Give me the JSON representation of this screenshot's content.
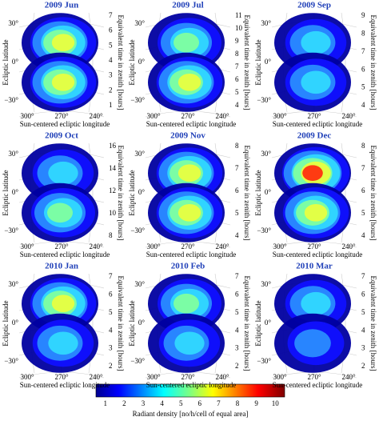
{
  "shared": {
    "y_label": "Ecliptic latitude",
    "y2_label": "Equivalent time in zenith [hours]",
    "x_label": "Sun-centered ecliptic longitude",
    "left_ticks": [
      "30°",
      "0°",
      "−30°"
    ],
    "bottom_ticks": [
      "300°",
      "270°",
      "240°"
    ]
  },
  "panels": [
    {
      "title": "2009 Jun",
      "right_ticks": [
        "7",
        "6",
        "5",
        "4",
        "3",
        "2",
        "1"
      ]
    },
    {
      "title": "2009 Jul",
      "right_ticks": [
        "11",
        "10",
        "9",
        "8",
        "7",
        "6",
        "5",
        "4"
      ]
    },
    {
      "title": "2009 Sep",
      "right_ticks": [
        "9",
        "8",
        "7",
        "6",
        "5",
        "4"
      ]
    },
    {
      "title": "2009 Oct",
      "right_ticks": [
        "16",
        "14",
        "12",
        "10",
        "8"
      ]
    },
    {
      "title": "2009 Nov",
      "right_ticks": [
        "8",
        "7",
        "6",
        "5",
        "4"
      ]
    },
    {
      "title": "2009 Dec",
      "right_ticks": [
        "8",
        "7",
        "6",
        "5",
        "4"
      ]
    },
    {
      "title": "2010 Jan",
      "right_ticks": [
        "7",
        "6",
        "5",
        "4",
        "3",
        "2"
      ]
    },
    {
      "title": "2010 Feb",
      "right_ticks": [
        "7",
        "6",
        "5",
        "4",
        "3",
        "2"
      ]
    },
    {
      "title": "2010 Mar",
      "right_ticks": [
        "7",
        "6",
        "5",
        "4",
        "3",
        "2"
      ]
    }
  ],
  "colorbar": {
    "ticks": [
      "1",
      "2",
      "3",
      "4",
      "5",
      "6",
      "7",
      "8",
      "9",
      "10"
    ],
    "label": "Radiant density [no/h/cell of equal area]"
  }
}
